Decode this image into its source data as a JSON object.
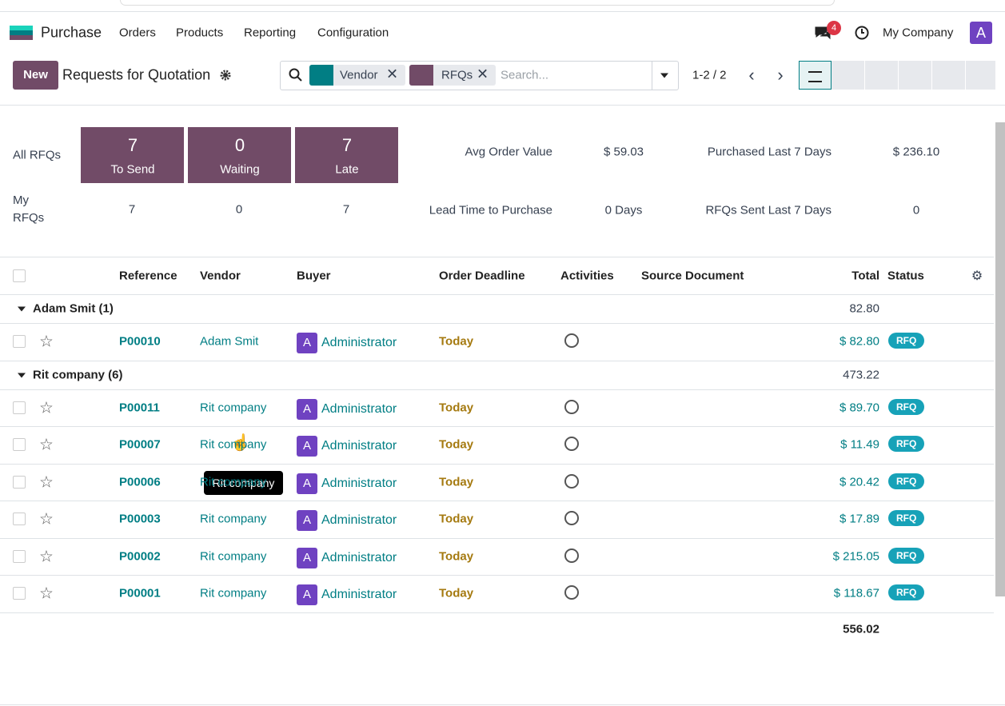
{
  "navbar": {
    "app": "Purchase",
    "menu": [
      "Orders",
      "Products",
      "Reporting",
      "Configuration"
    ],
    "badge": "4",
    "company": "My Company",
    "avatar": "A"
  },
  "control": {
    "new": "New",
    "title": "Requests for Quotation",
    "facets": [
      "Vendor",
      "RFQs"
    ],
    "placeholder": "Search...",
    "pager": "1-2 / 2"
  },
  "dashboard": {
    "all_label": "All RFQs",
    "cards": [
      {
        "value": "7",
        "label": "To Send"
      },
      {
        "value": "0",
        "label": "Waiting"
      },
      {
        "value": "7",
        "label": "Late"
      }
    ],
    "my_label": "My RFQs",
    "my_values": [
      "7",
      "0",
      "7"
    ],
    "stats": [
      {
        "label": "Avg Order Value",
        "value": "$ 59.03"
      },
      {
        "label": "Purchased Last 7 Days",
        "value": "$ 236.10"
      },
      {
        "label": "Lead Time to Purchase",
        "value": "0 Days"
      },
      {
        "label": "RFQs Sent Last 7 Days",
        "value": "0"
      }
    ]
  },
  "table": {
    "headers": [
      "Reference",
      "Vendor",
      "Buyer",
      "Order Deadline",
      "Activities",
      "Source Document",
      "Total",
      "Status"
    ],
    "groups": [
      {
        "name": "Adam Smit (1)",
        "total": "82.80",
        "rows": [
          {
            "reference": "P00010",
            "vendor": "Adam Smit",
            "buyer_initial": "A",
            "buyer": "Administrator",
            "deadline": "Today",
            "total": "$ 82.80",
            "status": "RFQ"
          }
        ]
      },
      {
        "name": "Rit company (6)",
        "total": "473.22",
        "rows": [
          {
            "reference": "P00011",
            "vendor": "Rit company",
            "buyer_initial": "A",
            "buyer": "Administrator",
            "deadline": "Today",
            "total": "$ 89.70",
            "status": "RFQ"
          },
          {
            "reference": "P00007",
            "vendor": "Rit company",
            "buyer_initial": "A",
            "buyer": "Administrator",
            "deadline": "Today",
            "total": "$ 11.49",
            "status": "RFQ"
          },
          {
            "reference": "P00006",
            "vendor": "Rit company",
            "buyer_initial": "A",
            "buyer": "Administrator",
            "deadline": "Today",
            "total": "$ 20.42",
            "status": "RFQ"
          },
          {
            "reference": "P00003",
            "vendor": "Rit company",
            "buyer_initial": "A",
            "buyer": "Administrator",
            "deadline": "Today",
            "total": "$ 17.89",
            "status": "RFQ"
          },
          {
            "reference": "P00002",
            "vendor": "Rit company",
            "buyer_initial": "A",
            "buyer": "Administrator",
            "deadline": "Today",
            "total": "$ 215.05",
            "status": "RFQ"
          },
          {
            "reference": "P00001",
            "vendor": "Rit company",
            "buyer_initial": "A",
            "buyer": "Administrator",
            "deadline": "Today",
            "total": "$ 118.67",
            "status": "RFQ"
          }
        ]
      }
    ],
    "grand_total": "556.02"
  },
  "tooltip": "Rit company"
}
